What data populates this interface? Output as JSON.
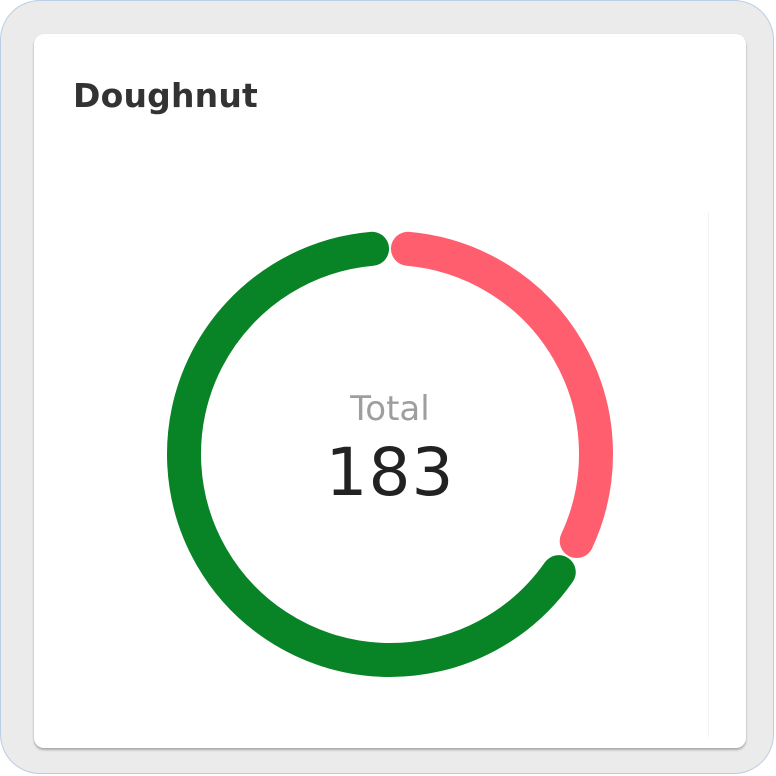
{
  "card": {
    "title": "Doughnut"
  },
  "chart_data": {
    "type": "pie",
    "variant": "doughnut",
    "center_label": "Total",
    "center_value": "183",
    "total": 183,
    "segments": [
      {
        "value": 61,
        "color": "#ff5e6e"
      },
      {
        "value": 122,
        "color": "#088326"
      }
    ]
  }
}
